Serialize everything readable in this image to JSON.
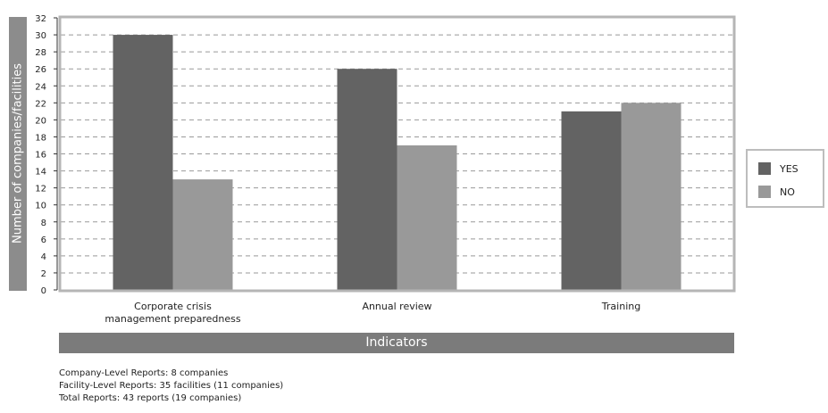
{
  "chart_data": {
    "type": "bar",
    "categories": [
      "Corporate crisis\nmanagement preparedness",
      "Annual review",
      "Training"
    ],
    "series": [
      {
        "name": "YES",
        "values": [
          30,
          26,
          21
        ],
        "color": "#636363"
      },
      {
        "name": "NO",
        "values": [
          13,
          17,
          22
        ],
        "color": "#999999"
      }
    ],
    "xlabel": "Indicators",
    "ylabel": "Number of companies/facilities",
    "ylim": [
      0,
      32
    ],
    "yticks": [
      0,
      2,
      4,
      6,
      8,
      10,
      12,
      14,
      16,
      18,
      20,
      22,
      24,
      26,
      28,
      30,
      32
    ],
    "grid": true,
    "legend_position": "right"
  },
  "notes": [
    "Company-Level Reports: 8 companies",
    "Facility-Level Reports: 35 facilities (11 companies)",
    "Total Reports: 43 reports (19 companies)"
  ]
}
